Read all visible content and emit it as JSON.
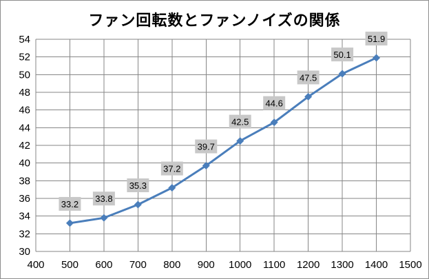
{
  "chart_data": {
    "type": "line",
    "title": "ファン回転数とファンノイズの関係",
    "xlabel": "",
    "ylabel": "",
    "x": [
      500,
      600,
      700,
      800,
      900,
      1000,
      1100,
      1200,
      1300,
      1400
    ],
    "series": [
      {
        "name": "ファンノイズ",
        "values": [
          33.2,
          33.8,
          35.3,
          37.2,
          39.7,
          42.5,
          44.6,
          47.5,
          50.1,
          51.9
        ]
      }
    ],
    "xlim": [
      400,
      1500
    ],
    "ylim": [
      30,
      54
    ],
    "xticks": [
      400,
      500,
      600,
      700,
      800,
      900,
      1000,
      1100,
      1200,
      1300,
      1400,
      1500
    ],
    "yticks": [
      30,
      32,
      34,
      36,
      38,
      40,
      42,
      44,
      46,
      48,
      50,
      52,
      54
    ],
    "grid": true,
    "legend": "none",
    "colors": {
      "line": "#4a7ebb",
      "marker": "#4a7ebb",
      "label_bg": "#c8c8c8",
      "grid": "#868686"
    }
  }
}
